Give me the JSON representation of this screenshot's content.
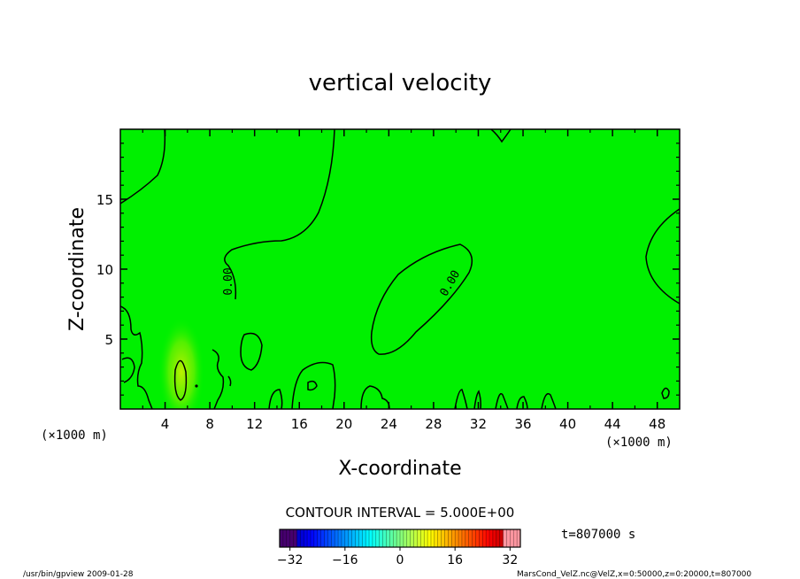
{
  "chart_data": {
    "type": "contour",
    "title": "vertical velocity",
    "xlabel": "X-coordinate",
    "ylabel": "Z-coordinate",
    "x_unit": "(×1000 m)",
    "y_unit": "(×1000 m)",
    "xlim": [
      0,
      50
    ],
    "ylim": [
      0,
      20
    ],
    "x_ticks": [
      4,
      8,
      12,
      16,
      20,
      24,
      28,
      32,
      36,
      40,
      44,
      48
    ],
    "y_ticks": [
      5,
      10,
      15
    ],
    "contour_interval_text": "CONTOUR INTERVAL = 5.000E+00",
    "contour_label": "0.00",
    "time_text": "t=807000 s",
    "colorbar": {
      "min": -35,
      "max": 35,
      "ticks": [
        -32,
        -16,
        0,
        16,
        32
      ],
      "tick_labels": [
        "−32",
        "−16",
        "0",
        "16",
        "32"
      ]
    },
    "background_color": "#00f000",
    "features": [
      {
        "name": "upward plume",
        "x": 5.5,
        "z": 2.5,
        "value": 4
      }
    ]
  },
  "footer": {
    "left": "/usr/bin/gpview   2009-01-28",
    "right": "MarsCond_VelZ.nc@VelZ,x=0:50000,z=0:20000,t=807000"
  }
}
